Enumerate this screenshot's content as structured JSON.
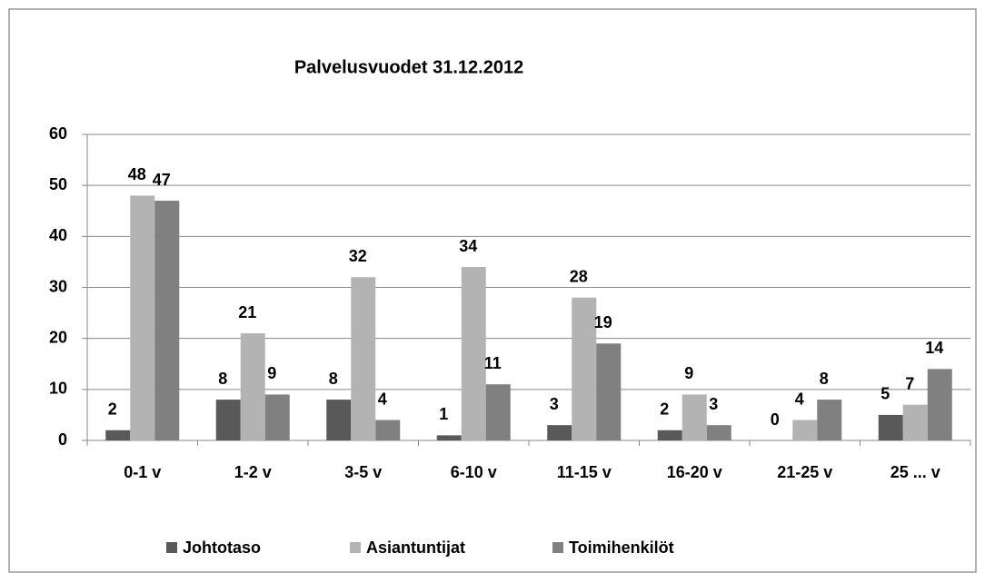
{
  "chart_data": {
    "type": "bar",
    "title": "Palvelusvuodet 31.12.2012",
    "categories": [
      "0-1 v",
      "1-2 v",
      "3-5 v",
      "6-10 v",
      "11-15 v",
      "16-20 v",
      "21-25 v",
      "25 ... v"
    ],
    "series": [
      {
        "name": "Johtotaso",
        "color": "#595959",
        "values": [
          2,
          8,
          8,
          1,
          3,
          2,
          0,
          5
        ]
      },
      {
        "name": "Asiantuntijat",
        "color": "#b3b3b3",
        "values": [
          48,
          21,
          32,
          34,
          28,
          9,
          4,
          7
        ]
      },
      {
        "name": "Toimihenkilöt",
        "color": "#808080",
        "values": [
          47,
          9,
          4,
          11,
          19,
          3,
          8,
          14
        ]
      }
    ],
    "ylim": [
      0,
      60
    ],
    "yticks": [
      0,
      10,
      20,
      30,
      40,
      50,
      60
    ],
    "grid": true,
    "legend": "bottom"
  }
}
